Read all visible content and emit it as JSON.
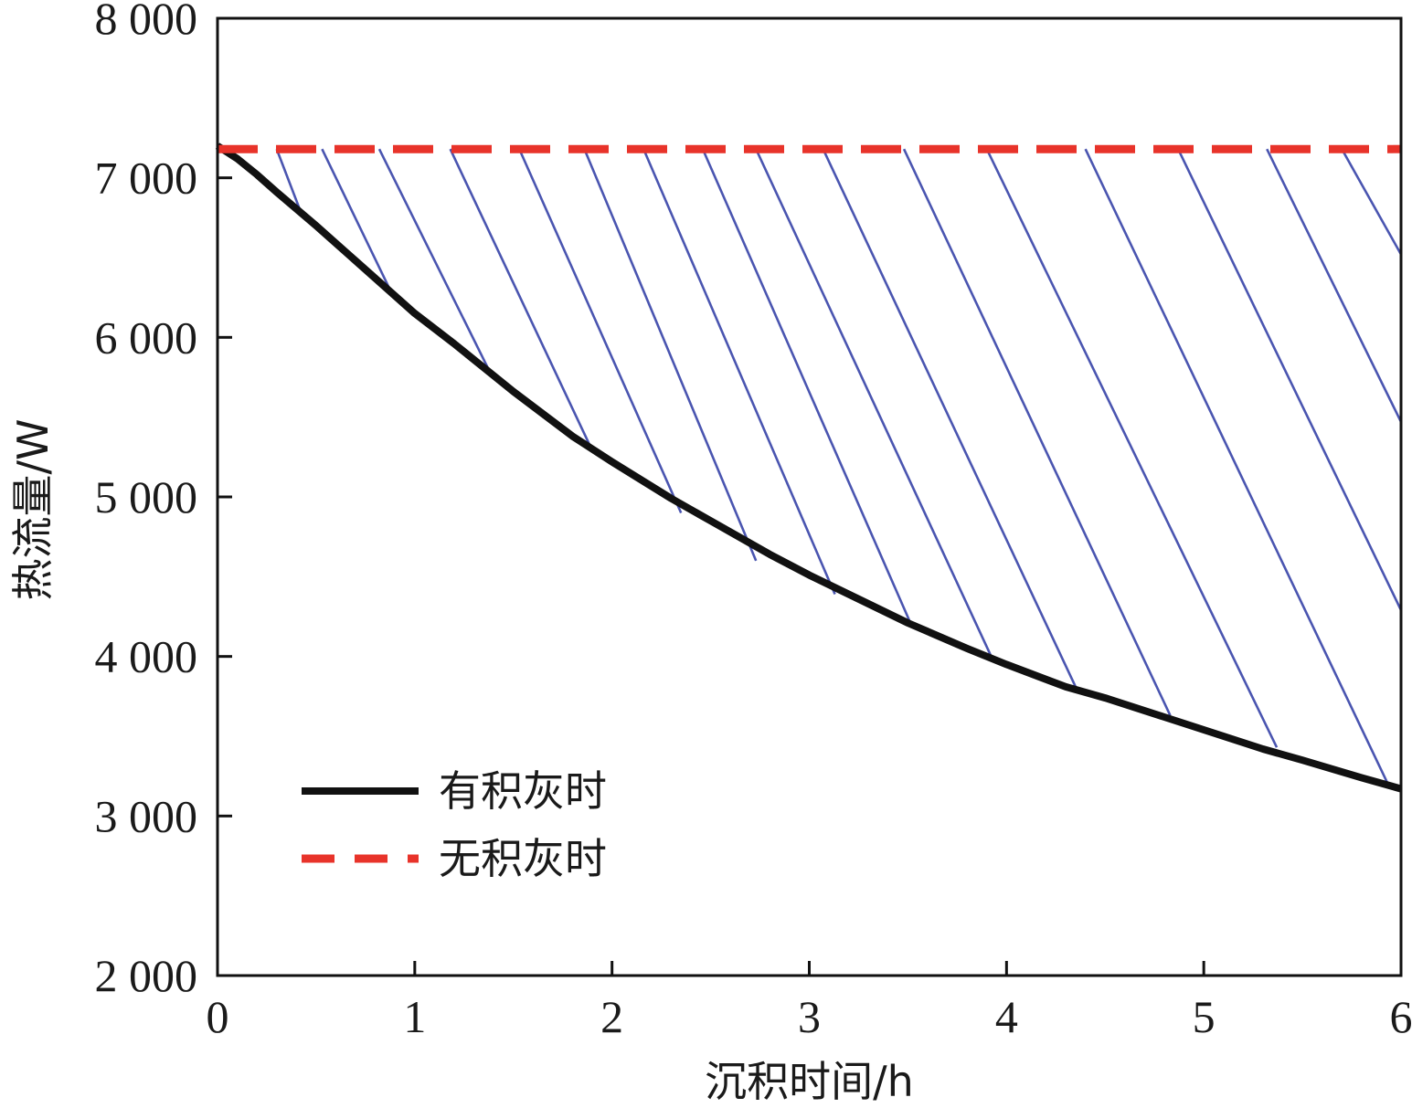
{
  "chart_data": {
    "type": "line",
    "title": "",
    "xlabel": "沉积时间/h",
    "ylabel": "热流量/W",
    "xlim": [
      0,
      6
    ],
    "ylim": [
      2000,
      8000
    ],
    "x_ticks": [
      0,
      1,
      2,
      3,
      4,
      5,
      6
    ],
    "x_tick_labels": [
      "0",
      "1",
      "2",
      "3",
      "4",
      "5",
      "6"
    ],
    "y_ticks": [
      2000,
      3000,
      4000,
      5000,
      6000,
      7000,
      8000
    ],
    "y_tick_labels": [
      "2 000",
      "3 000",
      "4 000",
      "5 000",
      "6 000",
      "7 000",
      "8 000"
    ],
    "grid": false,
    "legend_position": "lower-left",
    "series": [
      {
        "name": "有积灰时",
        "style": "solid",
        "color": "#111111",
        "x": [
          0,
          0.1,
          0.2,
          0.3,
          0.5,
          0.7,
          1.0,
          1.2,
          1.5,
          1.8,
          2.0,
          2.3,
          2.5,
          2.8,
          3.0,
          3.3,
          3.5,
          3.8,
          4.0,
          4.3,
          4.5,
          4.8,
          5.0,
          5.3,
          5.5,
          5.8,
          6.0
        ],
        "y": [
          7200,
          7120,
          7020,
          6910,
          6700,
          6480,
          6150,
          5960,
          5660,
          5380,
          5220,
          4990,
          4850,
          4640,
          4510,
          4330,
          4210,
          4050,
          3950,
          3810,
          3740,
          3620,
          3540,
          3420,
          3350,
          3240,
          3170
        ]
      },
      {
        "name": "无积灰时",
        "style": "dashed",
        "color": "#e8332a",
        "x": [
          0,
          6
        ],
        "y": [
          7180,
          7180
        ]
      }
    ],
    "hatch": {
      "color": "#4a55b0",
      "top_y": 7180,
      "start_x": [
        0.3,
        0.53,
        0.82,
        1.18,
        1.53,
        1.86,
        2.16,
        2.46,
        2.73,
        3.07,
        3.48,
        3.9,
        4.4,
        4.87,
        5.32,
        5.7
      ],
      "end_x": [
        0.43,
        0.87,
        1.37,
        1.9,
        2.35,
        2.73,
        3.13,
        3.52,
        3.93,
        4.35,
        4.83,
        5.37,
        5.93,
        6.0,
        6.0,
        6.0
      ],
      "end_y": [
        6760,
        6310,
        5810,
        5290,
        4900,
        4600,
        4390,
        4190,
        3980,
        3810,
        3630,
        3430,
        3210,
        4290,
        5470,
        6520
      ]
    },
    "legend": [
      {
        "label": "有积灰时",
        "style": "solid",
        "color": "#111111"
      },
      {
        "label": "无积灰时",
        "style": "dashed",
        "color": "#e8332a"
      }
    ]
  }
}
